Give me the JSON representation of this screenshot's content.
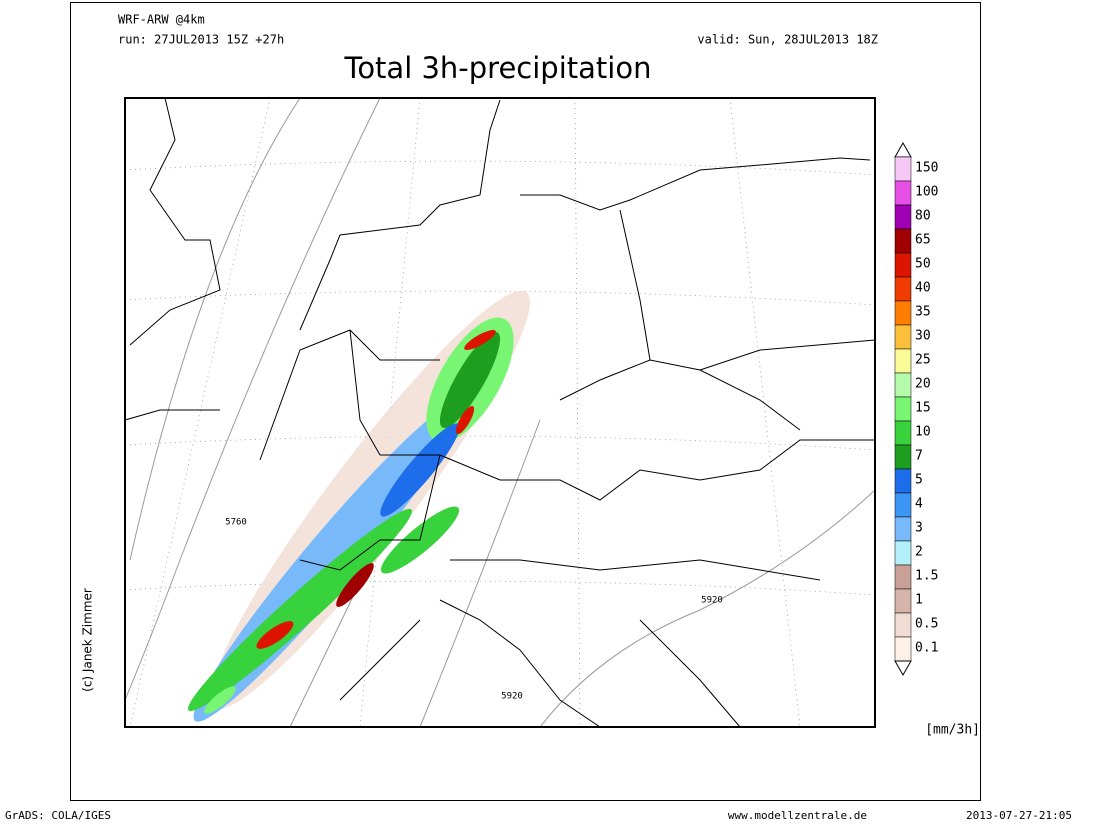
{
  "header": {
    "model": "WRF-ARW @4km",
    "run": "run: 27JUL2013 15Z +27h",
    "valid": "valid: Sun, 28JUL2013 18Z",
    "title": "Total 3h-precipitation"
  },
  "map": {
    "contour_labels": [
      "5760",
      "5920",
      "5920"
    ]
  },
  "colorbar": {
    "unit": "[mm/3h]",
    "levels": [
      150,
      100,
      80,
      65,
      50,
      40,
      35,
      30,
      25,
      20,
      15,
      10,
      7,
      5,
      4,
      3,
      2,
      1.5,
      1,
      0.5,
      0.1
    ],
    "colors": [
      "#f5c8f5",
      "#e650e6",
      "#a000b4",
      "#a00000",
      "#dc1400",
      "#f03c00",
      "#ff7d00",
      "#fac03c",
      "#fafa96",
      "#b4faaa",
      "#78f573",
      "#37d23c",
      "#1e9e1e",
      "#1e6eeb",
      "#3c96f5",
      "#78b9fa",
      "#b4f0fa",
      "#c8a096",
      "#d7b4aa",
      "#f0dcd2",
      "#fff0e6"
    ]
  },
  "credit": "(c) Janek Zimmer",
  "footer": {
    "software": "GrADS: COLA/IGES",
    "url": "www.modellzentrale.de",
    "timestamp": "2013-07-27-21:05"
  }
}
